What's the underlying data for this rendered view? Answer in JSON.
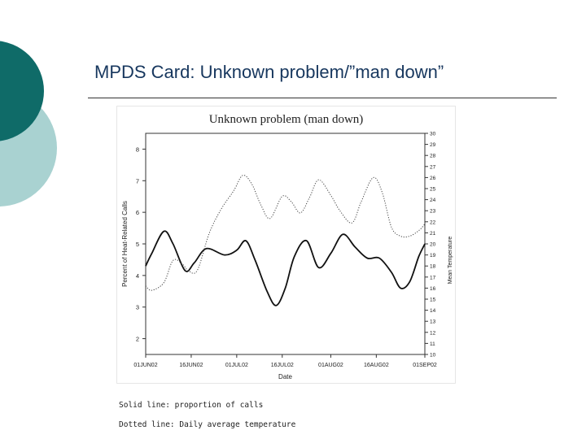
{
  "slide": {
    "title": "MPDS Card: Unknown problem/”man down”",
    "colors": {
      "accent_dark": "#0f6b68",
      "accent_light": "#a9d2d1",
      "title_color": "#17375e"
    }
  },
  "chart_data": {
    "type": "line",
    "title": "Unknown problem (man down)",
    "xlabel": "Date",
    "ylabel": "Percent of Heat-Related Calls",
    "y2label": "Mean Temperature",
    "x_ticks": [
      "01JUN02",
      "16JUN02",
      "01JUL02",
      "16JUL02",
      "01AUG02",
      "16AUG02",
      "01SEP02"
    ],
    "ylim": [
      1.5,
      8.5
    ],
    "y_ticks": [
      2,
      3,
      4,
      5,
      6,
      7,
      8
    ],
    "y2lim": [
      10,
      30
    ],
    "y2_ticks": [
      10,
      11,
      12,
      13,
      14,
      15,
      16,
      17,
      18,
      19,
      20,
      21,
      22,
      23,
      24,
      25,
      26,
      27,
      28,
      29,
      30
    ],
    "series": [
      {
        "axis": "left",
        "style": "solid",
        "points": [
          [
            "2002-06-01",
            4.3
          ],
          [
            "2002-06-03",
            4.7
          ],
          [
            "2002-06-07",
            5.4
          ],
          [
            "2002-06-10",
            5.0
          ],
          [
            "2002-06-14",
            4.15
          ],
          [
            "2002-06-17",
            4.4
          ],
          [
            "2002-06-21",
            4.85
          ],
          [
            "2002-06-27",
            4.65
          ],
          [
            "2002-07-01",
            4.8
          ],
          [
            "2002-07-04",
            5.1
          ],
          [
            "2002-07-07",
            4.5
          ],
          [
            "2002-07-11",
            3.5
          ],
          [
            "2002-07-14",
            3.05
          ],
          [
            "2002-07-17",
            3.6
          ],
          [
            "2002-07-20",
            4.6
          ],
          [
            "2002-07-24",
            5.1
          ],
          [
            "2002-07-28",
            4.25
          ],
          [
            "2002-08-01",
            4.7
          ],
          [
            "2002-08-05",
            5.3
          ],
          [
            "2002-08-09",
            4.9
          ],
          [
            "2002-08-13",
            4.55
          ],
          [
            "2002-08-17",
            4.55
          ],
          [
            "2002-08-21",
            4.1
          ],
          [
            "2002-08-24",
            3.6
          ],
          [
            "2002-08-27",
            3.8
          ],
          [
            "2002-08-30",
            4.6
          ],
          [
            "2002-09-01",
            5.0
          ]
        ]
      },
      {
        "axis": "right",
        "style": "dotted",
        "points": [
          [
            "2002-06-01",
            16.2
          ],
          [
            "2002-06-03",
            15.8
          ],
          [
            "2002-06-07",
            16.5
          ],
          [
            "2002-06-10",
            18.5
          ],
          [
            "2002-06-13",
            18.2
          ],
          [
            "2002-06-15",
            17.6
          ],
          [
            "2002-06-18",
            17.6
          ],
          [
            "2002-06-22",
            21.0
          ],
          [
            "2002-06-26",
            23.2
          ],
          [
            "2002-06-30",
            24.8
          ],
          [
            "2002-07-03",
            26.2
          ],
          [
            "2002-07-06",
            25.4
          ],
          [
            "2002-07-09",
            23.5
          ],
          [
            "2002-07-12",
            22.3
          ],
          [
            "2002-07-16",
            24.3
          ],
          [
            "2002-07-19",
            23.8
          ],
          [
            "2002-07-22",
            22.8
          ],
          [
            "2002-07-25",
            24.2
          ],
          [
            "2002-07-28",
            25.8
          ],
          [
            "2002-08-01",
            24.4
          ],
          [
            "2002-08-04",
            23.0
          ],
          [
            "2002-08-08",
            21.9
          ],
          [
            "2002-08-11",
            23.8
          ],
          [
            "2002-08-15",
            26.0
          ],
          [
            "2002-08-18",
            24.6
          ],
          [
            "2002-08-21",
            21.5
          ],
          [
            "2002-08-24",
            20.7
          ],
          [
            "2002-08-27",
            20.7
          ],
          [
            "2002-08-30",
            21.2
          ],
          [
            "2002-09-01",
            21.8
          ]
        ]
      }
    ]
  },
  "notes": {
    "solid": "Solid line: proportion of calls",
    "dotted": "Dotted line: Daily average temperature"
  }
}
